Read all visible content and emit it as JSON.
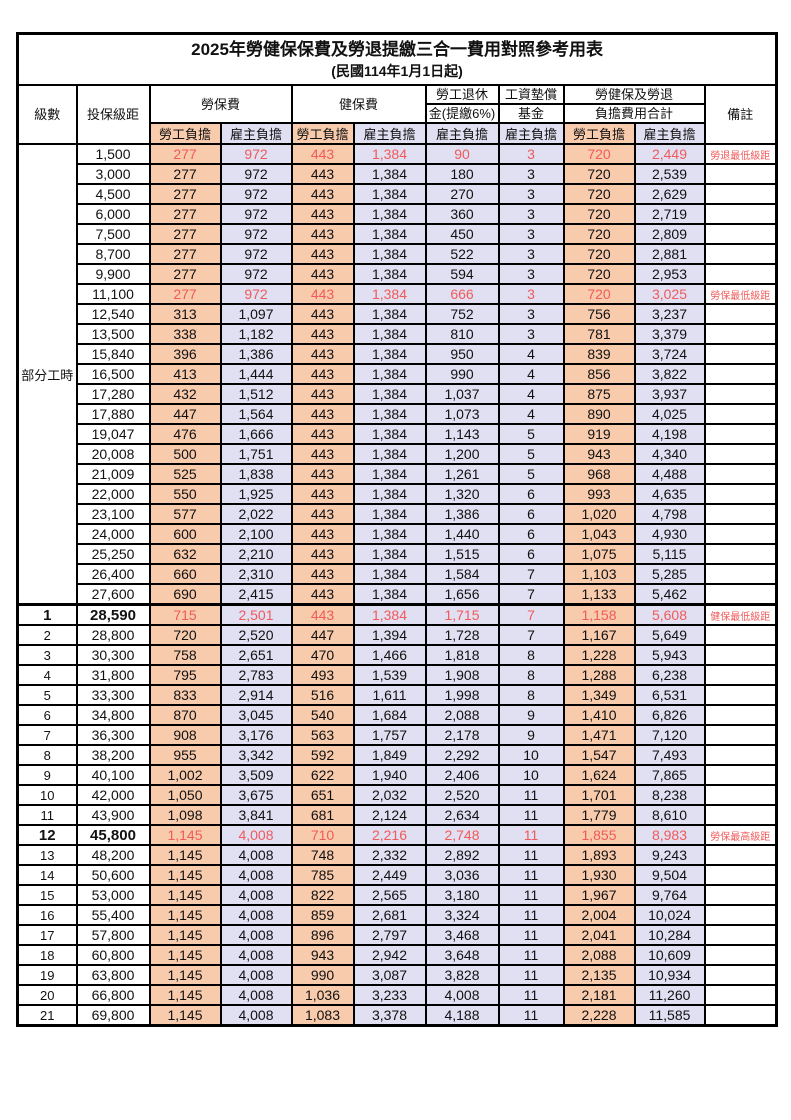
{
  "title": "2025年勞健保保費及勞退提繳三合一費用對照參考用表",
  "subtitle": "(民國114年1月1日起)",
  "colors": {
    "worker_bg": "#F8CBAD",
    "employer_bg": "#E1DFF2",
    "highlight_text": "#F05A5A",
    "border": "#000000"
  },
  "header": {
    "level": "級數",
    "bracket": "投保級距",
    "labor_insurance": "勞保費",
    "health_insurance": "健保費",
    "pension_line1": "勞工退休",
    "pension_line2": "金(提繳6%)",
    "wage_fund_line1": "工資墊償",
    "wage_fund_line2": "基金",
    "total_line1": "勞健保及勞退",
    "total_line2": "負擔費用合計",
    "remark": "備註",
    "worker_share": "勞工負擔",
    "employer_share": "雇主負擔"
  },
  "part_time_label": "部分工時",
  "part_time_row_count": 23,
  "rows": [
    {
      "level": "",
      "bracket": "1,500",
      "values": [
        "277",
        "972",
        "443",
        "1,384",
        "90",
        "3",
        "720",
        "2,449"
      ],
      "remark": "勞退最低級距",
      "highlight": true,
      "emphasis": false,
      "section_top": false
    },
    {
      "level": "",
      "bracket": "3,000",
      "values": [
        "277",
        "972",
        "443",
        "1,384",
        "180",
        "3",
        "720",
        "2,539"
      ],
      "remark": "",
      "highlight": false,
      "emphasis": false,
      "section_top": false
    },
    {
      "level": "",
      "bracket": "4,500",
      "values": [
        "277",
        "972",
        "443",
        "1,384",
        "270",
        "3",
        "720",
        "2,629"
      ],
      "remark": "",
      "highlight": false,
      "emphasis": false,
      "section_top": false
    },
    {
      "level": "",
      "bracket": "6,000",
      "values": [
        "277",
        "972",
        "443",
        "1,384",
        "360",
        "3",
        "720",
        "2,719"
      ],
      "remark": "",
      "highlight": false,
      "emphasis": false,
      "section_top": false
    },
    {
      "level": "",
      "bracket": "7,500",
      "values": [
        "277",
        "972",
        "443",
        "1,384",
        "450",
        "3",
        "720",
        "2,809"
      ],
      "remark": "",
      "highlight": false,
      "emphasis": false,
      "section_top": false
    },
    {
      "level": "",
      "bracket": "8,700",
      "values": [
        "277",
        "972",
        "443",
        "1,384",
        "522",
        "3",
        "720",
        "2,881"
      ],
      "remark": "",
      "highlight": false,
      "emphasis": false,
      "section_top": false
    },
    {
      "level": "",
      "bracket": "9,900",
      "values": [
        "277",
        "972",
        "443",
        "1,384",
        "594",
        "3",
        "720",
        "2,953"
      ],
      "remark": "",
      "highlight": false,
      "emphasis": false,
      "section_top": false
    },
    {
      "level": "",
      "bracket": "11,100",
      "values": [
        "277",
        "972",
        "443",
        "1,384",
        "666",
        "3",
        "720",
        "3,025"
      ],
      "remark": "勞保最低級距",
      "highlight": true,
      "emphasis": false,
      "section_top": false
    },
    {
      "level": "",
      "bracket": "12,540",
      "values": [
        "313",
        "1,097",
        "443",
        "1,384",
        "752",
        "3",
        "756",
        "3,237"
      ],
      "remark": "",
      "highlight": false,
      "emphasis": false,
      "section_top": false
    },
    {
      "level": "",
      "bracket": "13,500",
      "values": [
        "338",
        "1,182",
        "443",
        "1,384",
        "810",
        "3",
        "781",
        "3,379"
      ],
      "remark": "",
      "highlight": false,
      "emphasis": false,
      "section_top": false
    },
    {
      "level": "",
      "bracket": "15,840",
      "values": [
        "396",
        "1,386",
        "443",
        "1,384",
        "950",
        "4",
        "839",
        "3,724"
      ],
      "remark": "",
      "highlight": false,
      "emphasis": false,
      "section_top": false
    },
    {
      "level": "",
      "bracket": "16,500",
      "values": [
        "413",
        "1,444",
        "443",
        "1,384",
        "990",
        "4",
        "856",
        "3,822"
      ],
      "remark": "",
      "highlight": false,
      "emphasis": false,
      "section_top": false
    },
    {
      "level": "",
      "bracket": "17,280",
      "values": [
        "432",
        "1,512",
        "443",
        "1,384",
        "1,037",
        "4",
        "875",
        "3,937"
      ],
      "remark": "",
      "highlight": false,
      "emphasis": false,
      "section_top": false
    },
    {
      "level": "",
      "bracket": "17,880",
      "values": [
        "447",
        "1,564",
        "443",
        "1,384",
        "1,073",
        "4",
        "890",
        "4,025"
      ],
      "remark": "",
      "highlight": false,
      "emphasis": false,
      "section_top": false
    },
    {
      "level": "",
      "bracket": "19,047",
      "values": [
        "476",
        "1,666",
        "443",
        "1,384",
        "1,143",
        "5",
        "919",
        "4,198"
      ],
      "remark": "",
      "highlight": false,
      "emphasis": false,
      "section_top": false
    },
    {
      "level": "",
      "bracket": "20,008",
      "values": [
        "500",
        "1,751",
        "443",
        "1,384",
        "1,200",
        "5",
        "943",
        "4,340"
      ],
      "remark": "",
      "highlight": false,
      "emphasis": false,
      "section_top": false
    },
    {
      "level": "",
      "bracket": "21,009",
      "values": [
        "525",
        "1,838",
        "443",
        "1,384",
        "1,261",
        "5",
        "968",
        "4,488"
      ],
      "remark": "",
      "highlight": false,
      "emphasis": false,
      "section_top": false
    },
    {
      "level": "",
      "bracket": "22,000",
      "values": [
        "550",
        "1,925",
        "443",
        "1,384",
        "1,320",
        "6",
        "993",
        "4,635"
      ],
      "remark": "",
      "highlight": false,
      "emphasis": false,
      "section_top": false
    },
    {
      "level": "",
      "bracket": "23,100",
      "values": [
        "577",
        "2,022",
        "443",
        "1,384",
        "1,386",
        "6",
        "1,020",
        "4,798"
      ],
      "remark": "",
      "highlight": false,
      "emphasis": false,
      "section_top": false
    },
    {
      "level": "",
      "bracket": "24,000",
      "values": [
        "600",
        "2,100",
        "443",
        "1,384",
        "1,440",
        "6",
        "1,043",
        "4,930"
      ],
      "remark": "",
      "highlight": false,
      "emphasis": false,
      "section_top": false
    },
    {
      "level": "",
      "bracket": "25,250",
      "values": [
        "632",
        "2,210",
        "443",
        "1,384",
        "1,515",
        "6",
        "1,075",
        "5,115"
      ],
      "remark": "",
      "highlight": false,
      "emphasis": false,
      "section_top": false
    },
    {
      "level": "",
      "bracket": "26,400",
      "values": [
        "660",
        "2,310",
        "443",
        "1,384",
        "1,584",
        "7",
        "1,103",
        "5,285"
      ],
      "remark": "",
      "highlight": false,
      "emphasis": false,
      "section_top": false
    },
    {
      "level": "",
      "bracket": "27,600",
      "values": [
        "690",
        "2,415",
        "443",
        "1,384",
        "1,656",
        "7",
        "1,133",
        "5,462"
      ],
      "remark": "",
      "highlight": false,
      "emphasis": false,
      "section_top": false
    },
    {
      "level": "1",
      "bracket": "28,590",
      "values": [
        "715",
        "2,501",
        "443",
        "1,384",
        "1,715",
        "7",
        "1,158",
        "5,608"
      ],
      "remark": "健保最低級距",
      "highlight": true,
      "emphasis": true,
      "section_top": true
    },
    {
      "level": "2",
      "bracket": "28,800",
      "values": [
        "720",
        "2,520",
        "447",
        "1,394",
        "1,728",
        "7",
        "1,167",
        "5,649"
      ],
      "remark": "",
      "highlight": false,
      "emphasis": false,
      "section_top": false
    },
    {
      "level": "3",
      "bracket": "30,300",
      "values": [
        "758",
        "2,651",
        "470",
        "1,466",
        "1,818",
        "8",
        "1,228",
        "5,943"
      ],
      "remark": "",
      "highlight": false,
      "emphasis": false,
      "section_top": false
    },
    {
      "level": "4",
      "bracket": "31,800",
      "values": [
        "795",
        "2,783",
        "493",
        "1,539",
        "1,908",
        "8",
        "1,288",
        "6,238"
      ],
      "remark": "",
      "highlight": false,
      "emphasis": false,
      "section_top": false
    },
    {
      "level": "5",
      "bracket": "33,300",
      "values": [
        "833",
        "2,914",
        "516",
        "1,611",
        "1,998",
        "8",
        "1,349",
        "6,531"
      ],
      "remark": "",
      "highlight": false,
      "emphasis": false,
      "section_top": false
    },
    {
      "level": "6",
      "bracket": "34,800",
      "values": [
        "870",
        "3,045",
        "540",
        "1,684",
        "2,088",
        "9",
        "1,410",
        "6,826"
      ],
      "remark": "",
      "highlight": false,
      "emphasis": false,
      "section_top": false
    },
    {
      "level": "7",
      "bracket": "36,300",
      "values": [
        "908",
        "3,176",
        "563",
        "1,757",
        "2,178",
        "9",
        "1,471",
        "7,120"
      ],
      "remark": "",
      "highlight": false,
      "emphasis": false,
      "section_top": false
    },
    {
      "level": "8",
      "bracket": "38,200",
      "values": [
        "955",
        "3,342",
        "592",
        "1,849",
        "2,292",
        "10",
        "1,547",
        "7,493"
      ],
      "remark": "",
      "highlight": false,
      "emphasis": false,
      "section_top": false
    },
    {
      "level": "9",
      "bracket": "40,100",
      "values": [
        "1,002",
        "3,509",
        "622",
        "1,940",
        "2,406",
        "10",
        "1,624",
        "7,865"
      ],
      "remark": "",
      "highlight": false,
      "emphasis": false,
      "section_top": false
    },
    {
      "level": "10",
      "bracket": "42,000",
      "values": [
        "1,050",
        "3,675",
        "651",
        "2,032",
        "2,520",
        "11",
        "1,701",
        "8,238"
      ],
      "remark": "",
      "highlight": false,
      "emphasis": false,
      "section_top": false
    },
    {
      "level": "11",
      "bracket": "43,900",
      "values": [
        "1,098",
        "3,841",
        "681",
        "2,124",
        "2,634",
        "11",
        "1,779",
        "8,610"
      ],
      "remark": "",
      "highlight": false,
      "emphasis": false,
      "section_top": false
    },
    {
      "level": "12",
      "bracket": "45,800",
      "values": [
        "1,145",
        "4,008",
        "710",
        "2,216",
        "2,748",
        "11",
        "1,855",
        "8,983"
      ],
      "remark": "勞保最高級距",
      "highlight": true,
      "emphasis": true,
      "section_top": false
    },
    {
      "level": "13",
      "bracket": "48,200",
      "values": [
        "1,145",
        "4,008",
        "748",
        "2,332",
        "2,892",
        "11",
        "1,893",
        "9,243"
      ],
      "remark": "",
      "highlight": false,
      "emphasis": false,
      "section_top": false
    },
    {
      "level": "14",
      "bracket": "50,600",
      "values": [
        "1,145",
        "4,008",
        "785",
        "2,449",
        "3,036",
        "11",
        "1,930",
        "9,504"
      ],
      "remark": "",
      "highlight": false,
      "emphasis": false,
      "section_top": false
    },
    {
      "level": "15",
      "bracket": "53,000",
      "values": [
        "1,145",
        "4,008",
        "822",
        "2,565",
        "3,180",
        "11",
        "1,967",
        "9,764"
      ],
      "remark": "",
      "highlight": false,
      "emphasis": false,
      "section_top": false
    },
    {
      "level": "16",
      "bracket": "55,400",
      "values": [
        "1,145",
        "4,008",
        "859",
        "2,681",
        "3,324",
        "11",
        "2,004",
        "10,024"
      ],
      "remark": "",
      "highlight": false,
      "emphasis": false,
      "section_top": false
    },
    {
      "level": "17",
      "bracket": "57,800",
      "values": [
        "1,145",
        "4,008",
        "896",
        "2,797",
        "3,468",
        "11",
        "2,041",
        "10,284"
      ],
      "remark": "",
      "highlight": false,
      "emphasis": false,
      "section_top": false
    },
    {
      "level": "18",
      "bracket": "60,800",
      "values": [
        "1,145",
        "4,008",
        "943",
        "2,942",
        "3,648",
        "11",
        "2,088",
        "10,609"
      ],
      "remark": "",
      "highlight": false,
      "emphasis": false,
      "section_top": false
    },
    {
      "level": "19",
      "bracket": "63,800",
      "values": [
        "1,145",
        "4,008",
        "990",
        "3,087",
        "3,828",
        "11",
        "2,135",
        "10,934"
      ],
      "remark": "",
      "highlight": false,
      "emphasis": false,
      "section_top": false
    },
    {
      "level": "20",
      "bracket": "66,800",
      "values": [
        "1,145",
        "4,008",
        "1,036",
        "3,233",
        "4,008",
        "11",
        "2,181",
        "11,260"
      ],
      "remark": "",
      "highlight": false,
      "emphasis": false,
      "section_top": false
    },
    {
      "level": "21",
      "bracket": "69,800",
      "values": [
        "1,145",
        "4,008",
        "1,083",
        "3,378",
        "4,188",
        "11",
        "2,228",
        "11,585"
      ],
      "remark": "",
      "highlight": false,
      "emphasis": false,
      "section_top": false
    }
  ]
}
